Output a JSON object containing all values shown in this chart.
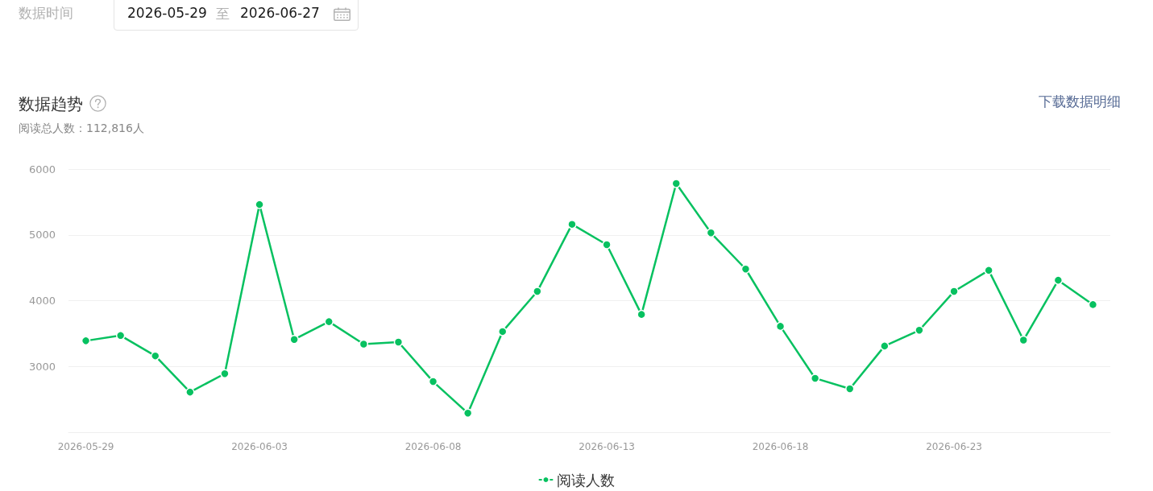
{
  "chart_data": {
    "type": "line",
    "title": "数据趋势",
    "subtitle": "阅读总人数：112,816人",
    "annotations": [
      "数据时间",
      "2026-05-29",
      "至",
      "2026-06-27",
      "下载数据明细"
    ],
    "categories": [
      "2026-05-29",
      null,
      null,
      null,
      null,
      "2026-06-03",
      null,
      null,
      null,
      null,
      "2026-06-08",
      null,
      null,
      null,
      null,
      "2026-06-13",
      null,
      null,
      null,
      null,
      "2026-06-18",
      null,
      null,
      null,
      null,
      "2026-06-23",
      null,
      null,
      null,
      null
    ],
    "series": [
      {
        "name": "阅读人数",
        "color": "#07c160",
        "values": [
          3390,
          3470,
          3160,
          2610,
          2890,
          5460,
          3410,
          3680,
          3340,
          3370,
          2770,
          2290,
          3530,
          4140,
          5160,
          4850,
          3790,
          5780,
          5030,
          4480,
          3610,
          2820,
          2660,
          3310,
          3550,
          4140,
          4460,
          3400,
          4310,
          3940
        ]
      }
    ],
    "ylim": [
      2000,
      6000
    ],
    "yticks": [
      3000,
      4000,
      5000,
      6000
    ],
    "grid": "y",
    "legend": "bottom",
    "marker": "circle",
    "line_style": "solid"
  }
}
